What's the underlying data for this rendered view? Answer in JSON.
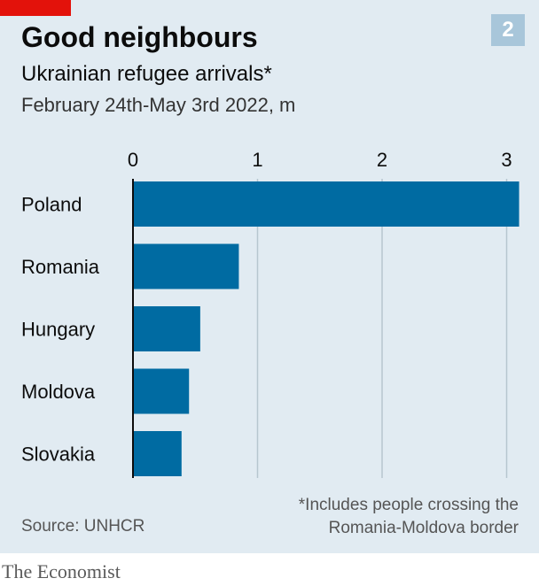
{
  "header": {
    "title": "Good neighbours",
    "subtitle": "Ukrainian refugee arrivals*",
    "period": "February 24th-May 3rd 2022, m",
    "badge": "2"
  },
  "chart_data": {
    "type": "bar",
    "orientation": "horizontal",
    "categories": [
      "Poland",
      "Romania",
      "Hungary",
      "Moldova",
      "Slovakia"
    ],
    "values": [
      3.1,
      0.85,
      0.54,
      0.45,
      0.39
    ],
    "xlim": [
      0,
      3.1
    ],
    "xticks": [
      0,
      1,
      2,
      3
    ],
    "grid": true,
    "xlabel": "",
    "ylabel": "",
    "bar_color": "#006ba2"
  },
  "footer": {
    "footnote_line1": "*Includes people crossing the",
    "footnote_line2": "Romania-Moldova border",
    "source": "Source: UNHCR",
    "brand": "The Economist"
  },
  "colors": {
    "panel": "#e1ebf2",
    "accent_red": "#e3120b",
    "badge": "#a8c6da"
  }
}
